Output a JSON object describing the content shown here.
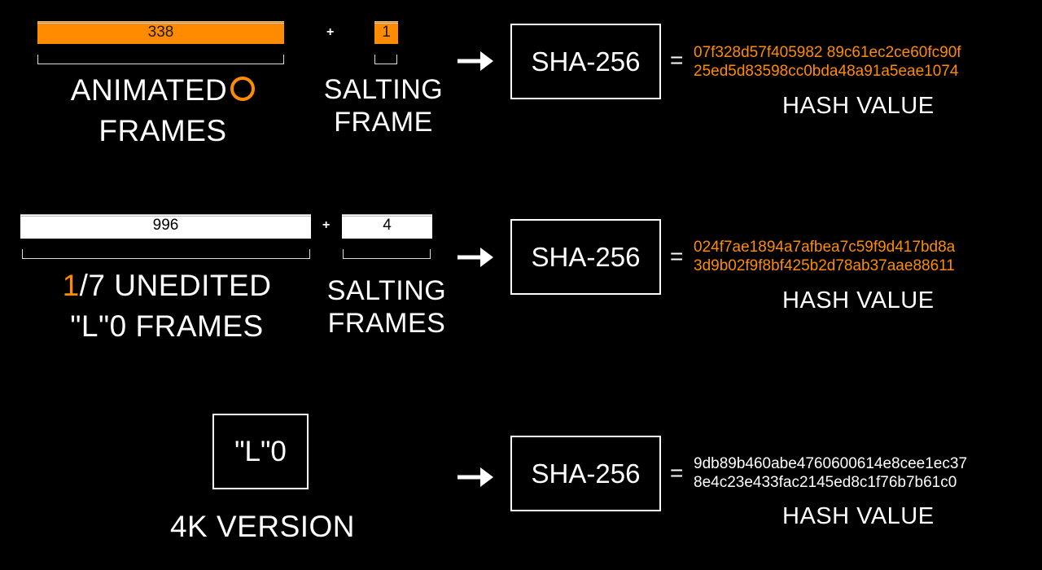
{
  "row1": {
    "frames_count": "338",
    "frames_label_line1": "ANIMATED",
    "frames_label_line2": "FRAMES",
    "plus": "+",
    "salt_count": "1",
    "salt_label_line1": "SALTING",
    "salt_label_line2": "FRAME",
    "algorithm": "SHA-256",
    "equals": "=",
    "hash_line1": "07f328d57f405982 89c61ec2ce60fc90f",
    "hash_line2": "25ed5d83598cc0bda48a91a5eae1074",
    "hash_label": "HASH VALUE"
  },
  "row2": {
    "frames_count": "996",
    "frames_label_accent": "1",
    "frames_label_line1_rest": "/7 UNEDITED",
    "frames_label_line2": "\"L\"0 FRAMES",
    "plus": "+",
    "salt_count": "4",
    "salt_label_line1": "SALTING",
    "salt_label_line2": "FRAMES",
    "algorithm": "SHA-256",
    "equals": "=",
    "hash_line1": "024f7ae1894a7afbea7c59f9d417bd8a",
    "hash_line2": "3d9b02f9f8bf425b2d78ab37aae88611",
    "hash_label": "HASH VALUE"
  },
  "row3": {
    "source_box": "\"L\"0",
    "source_label": "4K VERSION",
    "algorithm": "SHA-256",
    "equals": "=",
    "hash_line1": "9db89b460abe4760600614e8cee1ec37",
    "hash_line2": "8e4c23e433fac2145ed8c1f76b7b61c0",
    "hash_label": "HASH VALUE"
  },
  "colors": {
    "accent": "#ff8c00",
    "background": "#000000",
    "foreground": "#ffffff"
  },
  "icons": {
    "arrow": "right-arrow-icon",
    "ring": "circle-ring-icon"
  }
}
